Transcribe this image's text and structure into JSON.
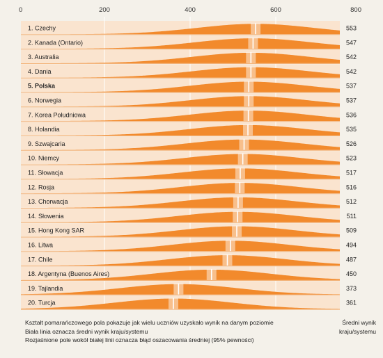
{
  "chart_data": {
    "type": "area",
    "x_ticks": [
      0,
      200,
      400,
      600,
      800
    ],
    "xlim": [
      0,
      800
    ],
    "colors": {
      "fill": "#f28a2c",
      "row_band": "#fae4cf",
      "separator": "#f3b47b",
      "mean_line": "#ffffff",
      "background": "#f4f1ea"
    },
    "rows": [
      {
        "label": "1. Czechy",
        "mean": 553,
        "bold": false
      },
      {
        "label": "2. Kanada (Ontario)",
        "mean": 547,
        "bold": false
      },
      {
        "label": "3. Australia",
        "mean": 542,
        "bold": false
      },
      {
        "label": "4. Dania",
        "mean": 542,
        "bold": false
      },
      {
        "label": "5. Polska",
        "mean": 537,
        "bold": true
      },
      {
        "label": "6. Norwegia",
        "mean": 537,
        "bold": false
      },
      {
        "label": "7. Korea Południowa",
        "mean": 536,
        "bold": false
      },
      {
        "label": "8. Holandia",
        "mean": 535,
        "bold": false
      },
      {
        "label": "9. Szwajcaria",
        "mean": 526,
        "bold": false
      },
      {
        "label": "10. Niemcy",
        "mean": 523,
        "bold": false
      },
      {
        "label": "11. Słowacja",
        "mean": 517,
        "bold": false
      },
      {
        "label": "12. Rosja",
        "mean": 516,
        "bold": false
      },
      {
        "label": "13. Chorwacja",
        "mean": 512,
        "bold": false
      },
      {
        "label": "14. Słowenia",
        "mean": 511,
        "bold": false
      },
      {
        "label": "15. Hong Kong SAR",
        "mean": 509,
        "bold": false
      },
      {
        "label": "16. Litwa",
        "mean": 494,
        "bold": false
      },
      {
        "label": "17. Chile",
        "mean": 487,
        "bold": false
      },
      {
        "label": "18. Argentyna (Buenos Aires)",
        "mean": 450,
        "bold": false
      },
      {
        "label": "19. Tajlandia",
        "mean": 373,
        "bold": false
      },
      {
        "label": "20. Turcja",
        "mean": 361,
        "bold": false
      }
    ]
  },
  "legend": {
    "line1": "Kształt pomarańczowego pola pokazuje jak wielu uczniów uzyskało wynik na danym poziomie",
    "line2": "Biała linia oznacza średni wynik kraju/systemu",
    "line3": "Rozjaśnione pole wokół białej linii oznacza błąd oszacowania średniej (95% pewności)"
  },
  "mean_header": {
    "line1": "Średni wynik",
    "line2": "kraju/systemu"
  }
}
